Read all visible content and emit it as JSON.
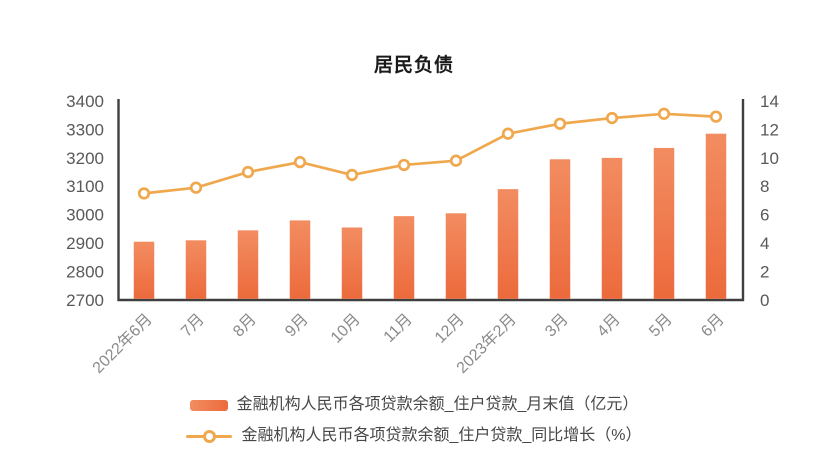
{
  "chart_data": {
    "type": "bar",
    "title": "居民负债",
    "categories": [
      "2022年6月",
      "7月",
      "8月",
      "9月",
      "10月",
      "11月",
      "12月",
      "2023年2月",
      "3月",
      "4月",
      "5月",
      "6月"
    ],
    "series": [
      {
        "name": "金融机构人民币各项贷款余额_住户贷款_月末值（亿元）",
        "type": "bar",
        "y_axis": "left",
        "values": [
          2905,
          2910,
          2945,
          2980,
          2955,
          2995,
          3005,
          3090,
          3195,
          3200,
          3235,
          3285
        ]
      },
      {
        "name": "金融机构人民币各项贷款余额_住户贷款_同比增长（%）",
        "type": "line",
        "y_axis": "right",
        "values": [
          7.5,
          7.9,
          9.0,
          9.7,
          8.8,
          9.5,
          9.8,
          11.7,
          12.4,
          12.8,
          13.1,
          12.9
        ]
      }
    ],
    "left_axis": {
      "min": 2700,
      "max": 3400,
      "step": 100,
      "tick_labels": [
        "3400",
        "3300",
        "3200",
        "3100",
        "3000",
        "2900",
        "2800",
        "2700"
      ]
    },
    "right_axis": {
      "min": 0,
      "max": 14,
      "step": 2,
      "tick_labels": [
        "14",
        "12",
        "10",
        "8",
        "6",
        "4",
        "2",
        "0"
      ]
    },
    "grid": false,
    "legend_position": "bottom",
    "colors": {
      "bar_gradient_top": "#F28D61",
      "bar_gradient_bottom": "#EC6A3C",
      "line": "#EFA84E",
      "marker_fill": "#FFFFFF",
      "axis_line": "#3F3F3F",
      "y_tick_text": "#595959",
      "x_tick_text": "#8A8A8A",
      "title_text": "#1A1A1A",
      "legend_text": "#474747",
      "background": "#FFFFFF"
    }
  }
}
